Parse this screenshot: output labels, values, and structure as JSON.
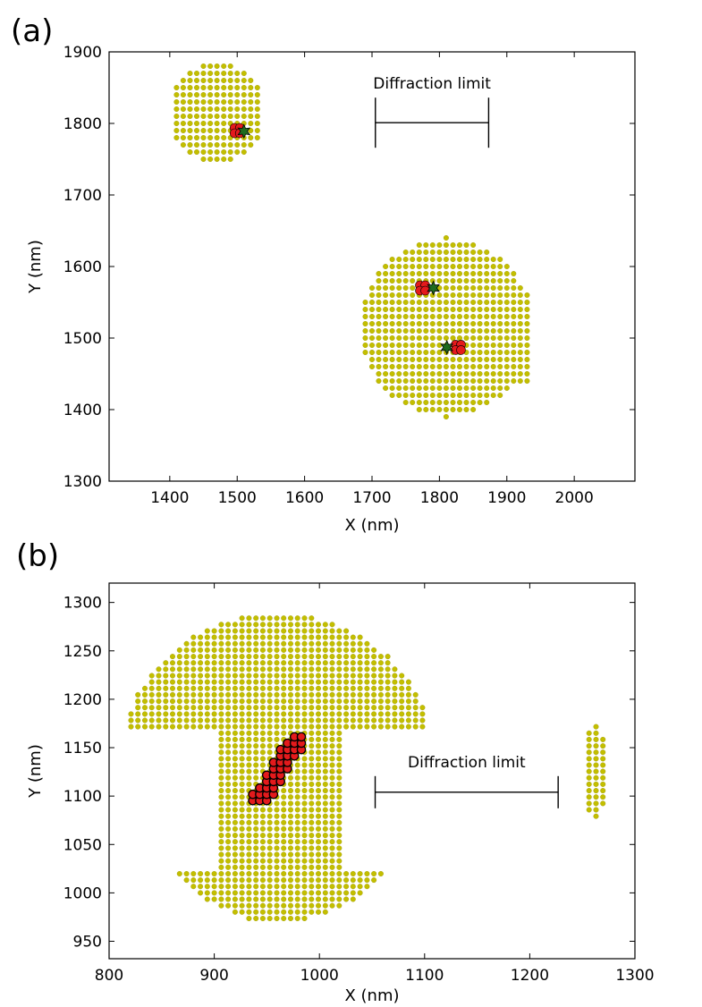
{
  "colors": {
    "region": "#c3be00",
    "region_edge": "#9e9a00",
    "emitter_fill": "#e41a1c",
    "emitter_edge": "#000000",
    "center_fill": "#1f6b1f",
    "axes": "#000000"
  },
  "chart_data": [
    {
      "panel": "(a)",
      "type": "scatter",
      "xlabel": "X (nm)",
      "ylabel": "Y (nm)",
      "xlim": [
        1310,
        2090
      ],
      "ylim": [
        1300,
        1900
      ],
      "xticks": [
        1400,
        1500,
        1600,
        1700,
        1800,
        1900,
        2000
      ],
      "yticks": [
        1300,
        1400,
        1500,
        1600,
        1700,
        1800,
        1900
      ],
      "grid": false,
      "grid_spacing": 10,
      "regions": [
        {
          "type": "disk",
          "cx": 1470,
          "cy": 1815,
          "r": 70
        },
        {
          "type": "disk",
          "cx": 1810,
          "cy": 1515,
          "r": 125
        },
        {
          "type": "rect",
          "x0": 1840,
          "x1": 1930,
          "y0": 1440,
          "y1": 1565
        }
      ],
      "emitters": [
        {
          "x": 1500,
          "y": 1790
        },
        {
          "x": 1775,
          "y": 1570
        },
        {
          "x": 1828,
          "y": 1487
        }
      ],
      "centers": [
        {
          "x": 1510,
          "y": 1789
        },
        {
          "x": 1791,
          "y": 1570
        },
        {
          "x": 1811,
          "y": 1487
        }
      ],
      "scalebar": {
        "label": "Diffraction limit",
        "x0": 1705,
        "x1": 1873,
        "y": 1801,
        "cap_half": 28
      }
    },
    {
      "panel": "(b)",
      "type": "scatter",
      "xlabel": "X (nm)",
      "ylabel": "Y (nm)",
      "xlim": [
        800,
        1300
      ],
      "ylim": [
        932,
        1320
      ],
      "xticks": [
        800,
        900,
        1000,
        1100,
        1200,
        1300
      ],
      "yticks": [
        950,
        1000,
        1050,
        1100,
        1150,
        1200,
        1250,
        1300
      ],
      "grid": false,
      "grid_spacing": 6.6,
      "regions": [
        {
          "type": "cap",
          "cx": 960,
          "cy": 1140,
          "r": 148,
          "ymin": 1170
        },
        {
          "type": "rect",
          "x0": 905,
          "x1": 1022,
          "y0": 1000,
          "y1": 1170
        },
        {
          "type": "bottom",
          "cx": 962,
          "cy": 1090,
          "r": 120,
          "ymax": 1020,
          "x0": 850,
          "x1": 1075
        },
        {
          "type": "lens",
          "cx": 1262,
          "cy": 1125,
          "rx": 12,
          "ry": 48
        }
      ],
      "strip": {
        "x0": 942,
        "y0": 1094,
        "x1": 981,
        "y1": 1162,
        "half_width": 9
      },
      "scalebar": {
        "label": "Diffraction limit",
        "x0": 1053,
        "x1": 1227,
        "y": 1104,
        "cap_half": 18
      }
    }
  ]
}
